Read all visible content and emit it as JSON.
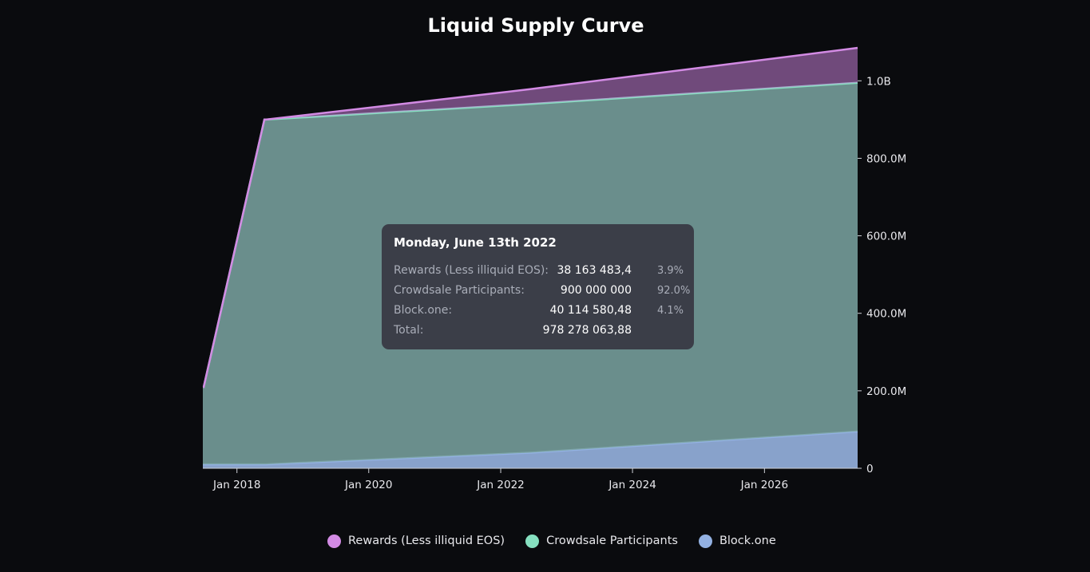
{
  "chart_data": {
    "type": "area",
    "stacked": true,
    "title": "Liquid Supply Curve",
    "xlabel": "",
    "ylabel": "",
    "x_ticks": [
      "Jan 2018",
      "Jan 2020",
      "Jan 2022",
      "Jan 2024",
      "Jan 2026"
    ],
    "y_ticks": [
      "0",
      "200.0M",
      "400.0M",
      "600.0M",
      "800.0M",
      "1.0B"
    ],
    "ylim": [
      0,
      1085000000
    ],
    "xlim": [
      "2017-06-26",
      "2027-06-01"
    ],
    "y_axis_position": "right",
    "grid": false,
    "legend_position": "bottom-center",
    "x": [
      "2017-06-26",
      "2017-07-01",
      "2018-06-02",
      "2018-06-10",
      "2022-06-13",
      "2027-06-01"
    ],
    "series": [
      {
        "name": "Block.one",
        "color": "#93b1e2",
        "values": [
          10000000,
          10000000,
          10000000,
          10000000,
          40114580.48,
          95000000
        ]
      },
      {
        "name": "Crowdsale Participants",
        "color": "#86e0c0",
        "values": [
          200000000,
          200000000,
          890000000,
          890000000,
          900000000,
          900000000
        ]
      },
      {
        "name": "Rewards (Less illiquid EOS)",
        "color": "#d38be4",
        "values": [
          0,
          0,
          0,
          0,
          38163483.4,
          90000000
        ]
      }
    ],
    "tooltip": {
      "date": "Monday, June 13th 2022",
      "rows": [
        {
          "label": "Rewards (Less illiquid EOS):",
          "value": "38 163 483,4",
          "pct": "3.9%"
        },
        {
          "label": "Crowdsale Participants:",
          "value": "900 000 000",
          "pct": "92.0%"
        },
        {
          "label": "Block.one:",
          "value": "40 114 580,48",
          "pct": "4.1%"
        },
        {
          "label": "Total:",
          "value": "978 278 063,88",
          "pct": ""
        }
      ]
    },
    "legend": [
      {
        "name": "Rewards (Less illiquid EOS)",
        "color": "#d38be4"
      },
      {
        "name": "Crowdsale Participants",
        "color": "#86e0c0"
      },
      {
        "name": "Block.one",
        "color": "#93b1e2"
      }
    ]
  }
}
